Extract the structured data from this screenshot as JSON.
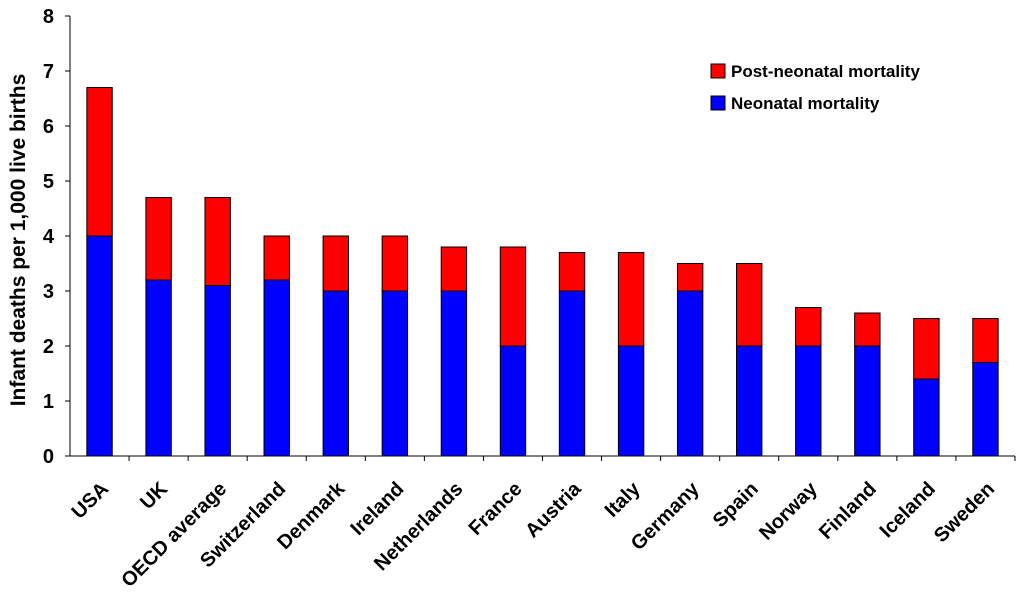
{
  "chart_data": {
    "type": "bar",
    "stacked": true,
    "title": "",
    "xlabel": "",
    "ylabel": "Infant deaths per 1,000 live births",
    "ylim": [
      0,
      8
    ],
    "yticks": [
      "0",
      "1",
      "2",
      "3",
      "4",
      "5",
      "6",
      "7",
      "8"
    ],
    "grid": false,
    "legend_position": "top-right",
    "categories": [
      "USA",
      "UK",
      "OECD average",
      "Switzerland",
      "Denmark",
      "Ireland",
      "Netherlands",
      "France",
      "Austria",
      "Italy",
      "Germany",
      "Spain",
      "Norway",
      "Finland",
      "Iceland",
      "Sweden"
    ],
    "series": [
      {
        "name": "Neonatal mortality",
        "color": "#0000ff",
        "values": [
          4.0,
          3.2,
          3.1,
          3.2,
          3.0,
          3.0,
          3.0,
          2.0,
          3.0,
          2.0,
          3.0,
          2.0,
          2.0,
          2.0,
          1.4,
          1.7
        ]
      },
      {
        "name": "Post-neonatal mortality",
        "color": "#ff0000",
        "values": [
          2.7,
          1.5,
          1.6,
          0.8,
          1.0,
          1.0,
          0.8,
          1.8,
          0.7,
          1.7,
          0.5,
          1.5,
          0.7,
          0.6,
          1.1,
          0.8
        ]
      }
    ],
    "legend_order": [
      "Post-neonatal mortality",
      "Neonatal mortality"
    ]
  }
}
